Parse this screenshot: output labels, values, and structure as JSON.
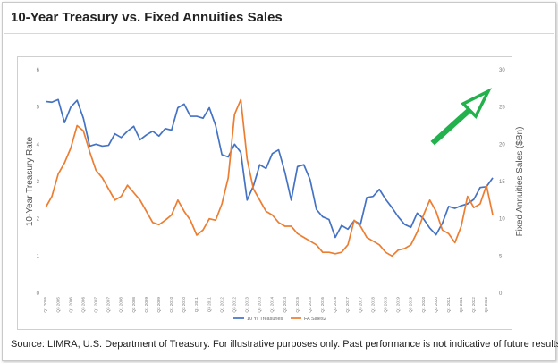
{
  "title": "10-Year Treasury vs. Fixed Annuities Sales",
  "source": "Source: LIMRA, U.S. Department of Treasury. For illustrative purposes only. Past performance is not indicative of future results.",
  "chart_data": {
    "type": "line",
    "x": [
      "Q1 2005",
      "Q2 2005",
      "Q3 2005",
      "Q4 2005",
      "Q1 2006",
      "Q2 2006",
      "Q3 2006",
      "Q4 2006",
      "Q1 2007",
      "Q2 2007",
      "Q3 2007",
      "Q4 2007",
      "Q1 2008",
      "Q2 2008",
      "Q3 2008",
      "Q4 2008",
      "Q1 2009",
      "Q2 2009",
      "Q3 2009",
      "Q4 2009",
      "Q1 2010",
      "Q2 2010",
      "Q3 2010",
      "Q4 2010",
      "Q1 2011",
      "Q2 2011",
      "Q3 2011",
      "Q4 2011",
      "Q1 2012",
      "Q2 2012",
      "Q3 2012",
      "Q4 2012",
      "Q1 2013",
      "Q2 2013",
      "Q3 2013",
      "Q4 2013",
      "Q1 2014",
      "Q2 2014",
      "Q3 2014",
      "Q4 2014",
      "Q1 2015",
      "Q2 2015",
      "Q3 2015",
      "Q4 2015",
      "Q1 2016",
      "Q2 2016",
      "Q3 2016",
      "Q4 2016",
      "Q1 2017",
      "Q2 2017",
      "Q3 2017",
      "Q4 2017",
      "Q1 2018",
      "Q2 2018",
      "Q3 2018",
      "Q4 2018",
      "Q1 2019",
      "Q2 2019",
      "Q3 2019",
      "Q4 2019",
      "Q1 2020",
      "Q2 2020",
      "Q3 2020",
      "Q4 2020",
      "Q1 2021",
      "Q2 2021",
      "Q3 2021",
      "Q4 2021",
      "Q1 2022",
      "Q2 2022",
      "Q3 2022",
      "Q4 2022"
    ],
    "x_tick_labels": [
      "Q1 2005",
      "Q3 2005",
      "Q1 2006",
      "Q3 2006",
      "Q1 2007",
      "Q3 2007",
      "Q1 2008",
      "Q3 2008",
      "Q1 2009",
      "Q3 2009",
      "Q1 2010",
      "Q3 2010",
      "Q1 2011",
      "Q3 2011",
      "Q1 2012",
      "Q3 2012",
      "Q1 2013",
      "Q3 2013",
      "Q1 2014",
      "Q3 2014",
      "Q1 2015",
      "Q3 2015",
      "Q1 2016",
      "Q3 2016",
      "Q1 2017",
      "Q3 2017",
      "Q1 2018",
      "Q3 2018",
      "Q1 2019",
      "Q3 2019",
      "Q1 2020",
      "Q3 2020",
      "Q1 2021",
      "Q3 2021",
      "Q1 2022",
      "Q3 2022"
    ],
    "series": [
      {
        "name": "10 Yr Treasuries",
        "axis": "left",
        "color": "#4472c4",
        "values": [
          5.15,
          5.13,
          5.2,
          4.58,
          5.0,
          5.18,
          4.7,
          3.95,
          4.0,
          3.95,
          3.97,
          4.28,
          4.18,
          4.35,
          4.48,
          4.12,
          4.25,
          4.35,
          4.22,
          4.42,
          4.38,
          4.98,
          5.08,
          4.75,
          4.75,
          4.7,
          4.98,
          4.5,
          3.72,
          3.66,
          4.0,
          3.78,
          2.5,
          2.88,
          3.45,
          3.35,
          3.75,
          3.85,
          3.25,
          2.5,
          3.4,
          3.45,
          3.05,
          2.25,
          2.05,
          1.98,
          1.5,
          1.82,
          1.72,
          1.95,
          1.85,
          2.57,
          2.6,
          2.79,
          2.52,
          2.3,
          2.05,
          1.85,
          1.77,
          2.15,
          2.0,
          1.75,
          1.57,
          1.88,
          2.33,
          2.28,
          2.35,
          2.4,
          2.52,
          2.84,
          2.86,
          3.1
        ]
      },
      {
        "name": "FA Sales2",
        "axis": "right",
        "color": "#ed7d31",
        "values": [
          11.5,
          13.0,
          16.0,
          17.5,
          19.5,
          22.5,
          21.8,
          19.0,
          16.5,
          15.5,
          14.0,
          12.5,
          13.0,
          14.5,
          13.5,
          12.5,
          11.0,
          9.5,
          9.2,
          9.8,
          10.5,
          12.5,
          11.0,
          9.8,
          7.8,
          8.5,
          10.0,
          9.8,
          12.0,
          15.5,
          24.0,
          26.0,
          18.0,
          14.0,
          12.5,
          11.0,
          10.5,
          9.5,
          9.0,
          9.0,
          8.0,
          7.5,
          7.0,
          6.5,
          5.5,
          5.5,
          5.3,
          5.5,
          6.5,
          9.8,
          9.0,
          7.5,
          7.0,
          6.5,
          5.5,
          5.0,
          5.8,
          6.0,
          6.5,
          8.2,
          10.5,
          12.5,
          11.0,
          8.5,
          8.0,
          6.8,
          9.0,
          13.0,
          11.5,
          12.0,
          14.5,
          10.5
        ]
      }
    ],
    "ylabel": "10-Year Treasury Rate",
    "ylim": [
      0,
      6
    ],
    "y_ticks": [
      "0",
      "1",
      "2",
      "3",
      "4",
      "5",
      "6"
    ],
    "y2label": "Fixed Annuities Sales ($Bn)",
    "y2lim": [
      0,
      30
    ],
    "y2_ticks": [
      "0",
      "5",
      "10",
      "15",
      "20",
      "25",
      "30"
    ],
    "legend_placement": "bottom-center",
    "grid": false,
    "annotation": "green-arrow-up-right"
  }
}
